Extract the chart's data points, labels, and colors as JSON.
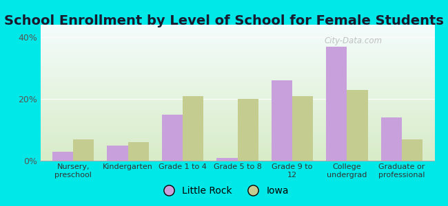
{
  "title": "School Enrollment by Level of School for Female Students",
  "categories": [
    "Nursery,\npreschool",
    "Kindergarten",
    "Grade 1 to 4",
    "Grade 5 to 8",
    "Grade 9 to\n12",
    "College\nundergrad",
    "Graduate or\nprofessional"
  ],
  "little_rock": [
    3,
    5,
    15,
    1,
    26,
    37,
    14
  ],
  "iowa": [
    7,
    6,
    21,
    20,
    21,
    23,
    7
  ],
  "little_rock_color": "#c8a0dc",
  "iowa_color": "#c5cc90",
  "background_outer": "#00e8e8",
  "ylim": [
    0,
    44
  ],
  "yticks": [
    0,
    20,
    40
  ],
  "ytick_labels": [
    "0%",
    "20%",
    "40%"
  ],
  "title_fontsize": 14,
  "legend_labels": [
    "Little Rock",
    "Iowa"
  ],
  "bar_width": 0.38,
  "watermark": "City-Data.com"
}
